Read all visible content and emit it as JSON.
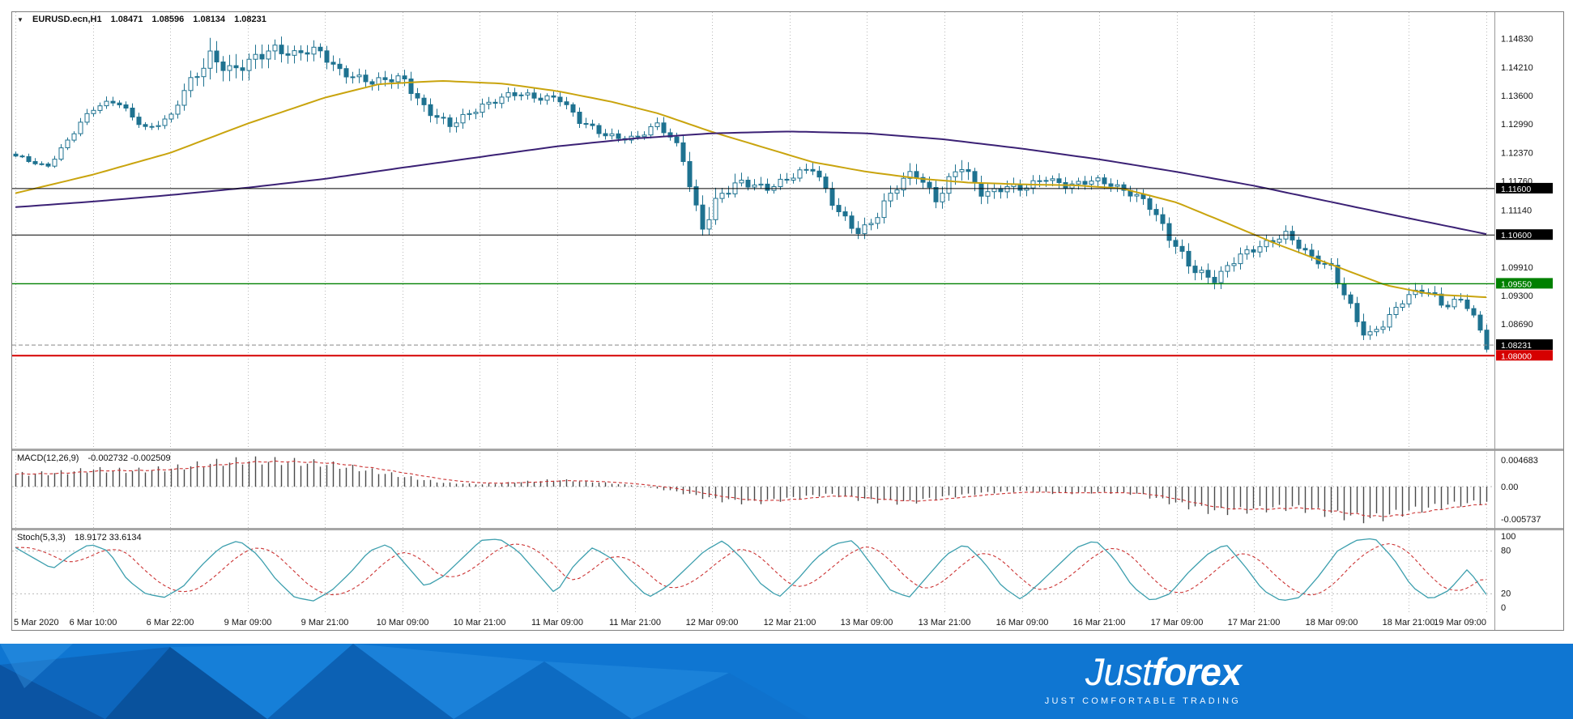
{
  "colors": {
    "brand_blue": "#0f76d2",
    "candle": "#1e7290",
    "signal_red": "#cc3333",
    "stoch_teal": "#3d9fae",
    "macd_bar": "#4a4a4a",
    "level_green": "#008000",
    "level_red": "#d60000"
  },
  "window": {
    "symbol_timeframe": "EURUSD.ecn,H1",
    "ohlc": {
      "open": "1.08471",
      "high": "1.08596",
      "low": "1.08134",
      "close": "1.08231"
    }
  },
  "chart_data": {
    "type": "candlestick",
    "symbol": "EURUSD.ecn",
    "timeframe": "H1",
    "title": "EURUSD.ecn,H1 1.08471 1.08596 1.08134 1.08231",
    "ohlc_current": {
      "open": 1.08471,
      "high": 1.08596,
      "low": 1.08134,
      "close": 1.08231
    },
    "ylim": [
      1.06,
      1.154
    ],
    "grid": "vertical-period-separators",
    "legend_position": "none",
    "x_labels": [
      "5 Mar 2020",
      "6 Mar 10:00",
      "6 Mar 22:00",
      "9 Mar 09:00",
      "9 Mar 21:00",
      "10 Mar 09:00",
      "10 Mar 21:00",
      "11 Mar 09:00",
      "11 Mar 21:00",
      "12 Mar 09:00",
      "12 Mar 21:00",
      "13 Mar 09:00",
      "13 Mar 21:00",
      "16 Mar 09:00",
      "16 Mar 21:00",
      "17 Mar 09:00",
      "17 Mar 21:00",
      "18 Mar 09:00",
      "18 Mar 21:00",
      "19 Mar 09:00"
    ],
    "y_ticks": [
      1.1483,
      1.1421,
      1.136,
      1.1299,
      1.1237,
      1.1176,
      1.1114,
      1.0991,
      1.093,
      1.0869
    ],
    "levels": [
      {
        "price": 1.116,
        "label": "1.11600",
        "line": "#000000",
        "badge": "#000000",
        "width": 1,
        "dash": false
      },
      {
        "price": 1.106,
        "label": "1.10600",
        "line": "#000000",
        "badge": "#000000",
        "width": 1,
        "dash": false
      },
      {
        "price": 1.0955,
        "label": "1.09550",
        "line": "#008000",
        "badge": "#008000",
        "width": 1.4,
        "dash": false
      },
      {
        "price": 1.08231,
        "label": "1.08231",
        "line": "#888888",
        "badge": "#000000",
        "width": 1,
        "dash": true
      },
      {
        "price": 1.08,
        "label": "1.08000",
        "line": "#d60000",
        "badge": "#d60000",
        "width": 2,
        "dash": false
      }
    ],
    "candle_count": 228,
    "price_path": [
      [
        0,
        1.1228,
        0.0014
      ],
      [
        0.4,
        1.1207,
        0.0014
      ],
      [
        0.8,
        1.1292,
        0.0018
      ],
      [
        1,
        1.133,
        0.0022
      ],
      [
        1.3,
        1.1352,
        0.002
      ],
      [
        1.7,
        1.1285,
        0.002
      ],
      [
        2,
        1.1312,
        0.0018
      ],
      [
        2.2,
        1.1382,
        0.003
      ],
      [
        2.5,
        1.1448,
        0.0055
      ],
      [
        2.8,
        1.1402,
        0.005
      ],
      [
        3,
        1.1432,
        0.0045
      ],
      [
        3.3,
        1.1468,
        0.004
      ],
      [
        3.6,
        1.1445,
        0.0035
      ],
      [
        3.9,
        1.1458,
        0.003
      ],
      [
        4.2,
        1.1415,
        0.0028
      ],
      [
        4.6,
        1.1385,
        0.0026
      ],
      [
        5,
        1.1402,
        0.003
      ],
      [
        5.3,
        1.133,
        0.003
      ],
      [
        5.6,
        1.1292,
        0.0026
      ],
      [
        6,
        1.134,
        0.0024
      ],
      [
        6.4,
        1.1362,
        0.0022
      ],
      [
        6.8,
        1.1355,
        0.0022
      ],
      [
        7,
        1.1362,
        0.0024
      ],
      [
        7.3,
        1.13,
        0.0024
      ],
      [
        7.6,
        1.1275,
        0.0022
      ],
      [
        8,
        1.127,
        0.0022
      ],
      [
        8.3,
        1.1296,
        0.0024
      ],
      [
        8.6,
        1.124,
        0.003
      ],
      [
        8.85,
        1.108,
        0.006
      ],
      [
        9.1,
        1.1142,
        0.0045
      ],
      [
        9.4,
        1.1172,
        0.0035
      ],
      [
        9.7,
        1.1165,
        0.0028
      ],
      [
        10,
        1.1182,
        0.0026
      ],
      [
        10.3,
        1.1202,
        0.0028
      ],
      [
        10.6,
        1.112,
        0.003
      ],
      [
        10.9,
        1.1062,
        0.0032
      ],
      [
        11.1,
        1.109,
        0.003
      ],
      [
        11.35,
        1.1162,
        0.0035
      ],
      [
        11.6,
        1.1205,
        0.0035
      ],
      [
        11.9,
        1.113,
        0.003
      ],
      [
        12.2,
        1.1212,
        0.004
      ],
      [
        12.5,
        1.1152,
        0.0035
      ],
      [
        12.8,
        1.1162,
        0.0028
      ],
      [
        13,
        1.1156,
        0.0026
      ],
      [
        13.3,
        1.1186,
        0.0024
      ],
      [
        13.6,
        1.1166,
        0.0024
      ],
      [
        14,
        1.1176,
        0.0022
      ],
      [
        14.3,
        1.1162,
        0.0024
      ],
      [
        14.6,
        1.1132,
        0.0026
      ],
      [
        14.9,
        1.1052,
        0.0032
      ],
      [
        15.2,
        1.0992,
        0.0034
      ],
      [
        15.5,
        1.0962,
        0.003
      ],
      [
        15.8,
        1.1012,
        0.0028
      ],
      [
        16.1,
        1.1042,
        0.0026
      ],
      [
        16.4,
        1.1062,
        0.0026
      ],
      [
        16.7,
        1.1012,
        0.0026
      ],
      [
        17,
        1.0992,
        0.0028
      ],
      [
        17.2,
        1.0922,
        0.0032
      ],
      [
        17.45,
        1.0832,
        0.0034
      ],
      [
        17.7,
        1.0872,
        0.003
      ],
      [
        17.95,
        1.0932,
        0.003
      ],
      [
        18.2,
        1.0945,
        0.0032
      ],
      [
        18.45,
        1.0902,
        0.0028
      ],
      [
        18.7,
        1.0922,
        0.0026
      ],
      [
        18.85,
        1.0882,
        0.0024
      ],
      [
        19,
        1.0823,
        0.0024
      ]
    ],
    "moving_averages": [
      {
        "name": "ma-fast",
        "color": "#c9a40e",
        "points": [
          [
            0,
            1.115
          ],
          [
            1,
            1.119
          ],
          [
            2,
            1.1237
          ],
          [
            3,
            1.13
          ],
          [
            4,
            1.1356
          ],
          [
            4.7,
            1.1385
          ],
          [
            5.5,
            1.1392
          ],
          [
            6.3,
            1.1386
          ],
          [
            7,
            1.137
          ],
          [
            7.7,
            1.1347
          ],
          [
            8.3,
            1.1322
          ],
          [
            9,
            1.1282
          ],
          [
            9.7,
            1.1247
          ],
          [
            10.3,
            1.1217
          ],
          [
            11,
            1.1196
          ],
          [
            11.7,
            1.1181
          ],
          [
            12.3,
            1.1173
          ],
          [
            13,
            1.1169
          ],
          [
            13.7,
            1.1167
          ],
          [
            14.3,
            1.116
          ],
          [
            15,
            1.113
          ],
          [
            15.7,
            1.1082
          ],
          [
            16.3,
            1.104
          ],
          [
            17,
            1.0996
          ],
          [
            17.7,
            1.0952
          ],
          [
            18.3,
            1.0932
          ],
          [
            19,
            1.0926
          ]
        ]
      },
      {
        "name": "ma-slow",
        "color": "#3b2175",
        "points": [
          [
            0,
            1.112
          ],
          [
            1,
            1.1132
          ],
          [
            2,
            1.1146
          ],
          [
            3,
            1.1162
          ],
          [
            4,
            1.1181
          ],
          [
            5,
            1.1205
          ],
          [
            6,
            1.1228
          ],
          [
            7,
            1.1251
          ],
          [
            8,
            1.1268
          ],
          [
            9,
            1.1279
          ],
          [
            10,
            1.1283
          ],
          [
            11,
            1.1279
          ],
          [
            12,
            1.1266
          ],
          [
            13,
            1.1246
          ],
          [
            14,
            1.1223
          ],
          [
            15,
            1.1196
          ],
          [
            16,
            1.1166
          ],
          [
            17,
            1.1131
          ],
          [
            18,
            1.1096
          ],
          [
            19,
            1.1062
          ]
        ]
      }
    ],
    "macd": {
      "label": "MACD(12,26,9)",
      "values_text": "-0.002732 -0.002509",
      "values": [
        -0.002732,
        -0.002509
      ],
      "y_ticks": [
        [
          0.004683,
          "0.004683"
        ],
        [
          0,
          "0.00"
        ],
        [
          -0.005737,
          "-0.005737"
        ]
      ],
      "path": [
        [
          0,
          0.0022
        ],
        [
          0.5,
          0.0024
        ],
        [
          1,
          0.003
        ],
        [
          1.5,
          0.0028
        ],
        [
          2,
          0.0032
        ],
        [
          2.5,
          0.0041
        ],
        [
          3,
          0.0046
        ],
        [
          3.5,
          0.0044
        ],
        [
          4,
          0.004
        ],
        [
          4.5,
          0.003
        ],
        [
          5,
          0.0018
        ],
        [
          5.5,
          0.0007
        ],
        [
          6,
          0.0004
        ],
        [
          6.5,
          0.0008
        ],
        [
          7,
          0.0012
        ],
        [
          7.5,
          0.0008
        ],
        [
          8,
          0.0002
        ],
        [
          8.5,
          -0.0008
        ],
        [
          9,
          -0.0022
        ],
        [
          9.5,
          -0.0028
        ],
        [
          10,
          -0.0021
        ],
        [
          10.5,
          -0.0013
        ],
        [
          11,
          -0.0024
        ],
        [
          11.5,
          -0.0028
        ],
        [
          12,
          -0.0018
        ],
        [
          12.5,
          -0.0011
        ],
        [
          13,
          -0.0008
        ],
        [
          13.5,
          -0.0012
        ],
        [
          14,
          -0.001
        ],
        [
          14.5,
          -0.0013
        ],
        [
          15,
          -0.003
        ],
        [
          15.5,
          -0.0044
        ],
        [
          16,
          -0.004
        ],
        [
          16.5,
          -0.0036
        ],
        [
          17,
          -0.0048
        ],
        [
          17.5,
          -0.0057
        ],
        [
          18,
          -0.0043
        ],
        [
          18.5,
          -0.0032
        ],
        [
          19,
          -0.0027
        ]
      ]
    },
    "stoch": {
      "label": "Stoch(5,3,3)",
      "values_text": "18.9172 33.6134",
      "values": [
        18.9172,
        33.6134
      ],
      "y_ticks": [
        [
          100,
          "100"
        ],
        [
          80,
          "80"
        ],
        [
          20,
          "20"
        ],
        [
          0,
          "0"
        ]
      ],
      "level_lines": [
        80,
        20
      ],
      "series": [
        85,
        70,
        55,
        75,
        90,
        80,
        40,
        20,
        15,
        30,
        60,
        85,
        95,
        75,
        40,
        15,
        10,
        25,
        50,
        80,
        90,
        60,
        30,
        45,
        70,
        95,
        97,
        80,
        50,
        20,
        60,
        85,
        70,
        40,
        15,
        30,
        55,
        80,
        95,
        70,
        35,
        15,
        40,
        70,
        90,
        95,
        60,
        25,
        15,
        45,
        75,
        90,
        65,
        30,
        12,
        35,
        60,
        85,
        95,
        70,
        30,
        10,
        20,
        50,
        75,
        90,
        60,
        25,
        10,
        15,
        45,
        80,
        95,
        98,
        70,
        30,
        12,
        25,
        55,
        19
      ]
    }
  },
  "footer": {
    "brand_first": "Just",
    "brand_second": "forex",
    "tagline": "JUST COMFORTABLE TRADING"
  }
}
